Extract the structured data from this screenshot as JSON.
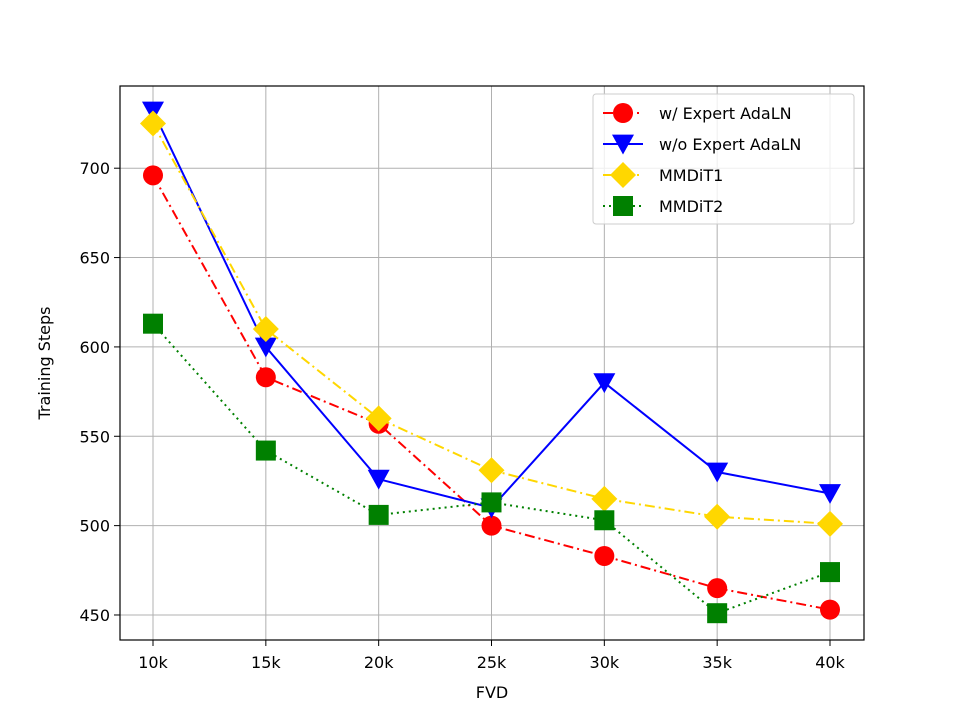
{
  "chart_data": {
    "type": "line",
    "title": "",
    "xlabel": "FVD",
    "ylabel": "Training Steps",
    "categories": [
      "10k",
      "15k",
      "20k",
      "25k",
      "30k",
      "35k",
      "40k"
    ],
    "ylim": [
      436,
      746
    ],
    "yticks": [
      450,
      500,
      550,
      600,
      650,
      700
    ],
    "grid": true,
    "legend_position": "top-right",
    "series": [
      {
        "name": "w/ Expert AdaLN",
        "values": [
          696,
          583,
          557,
          500,
          483,
          465,
          453
        ],
        "color": "#ff0000",
        "marker": "circle",
        "linestyle": "dashdot"
      },
      {
        "name": "w/o Expert AdaLN",
        "values": [
          732,
          600,
          526,
          510,
          580,
          530,
          518
        ],
        "color": "#0000ff",
        "marker": "triangle-down",
        "linestyle": "solid"
      },
      {
        "name": "MMDiT1",
        "values": [
          725,
          610,
          560,
          531,
          515,
          505,
          501
        ],
        "color": "#ffd700",
        "marker": "diamond",
        "linestyle": "dashdot"
      },
      {
        "name": "MMDiT2",
        "values": [
          613,
          542,
          506,
          513,
          503,
          451,
          474
        ],
        "color": "#008000",
        "marker": "square",
        "linestyle": "dotted"
      }
    ]
  }
}
